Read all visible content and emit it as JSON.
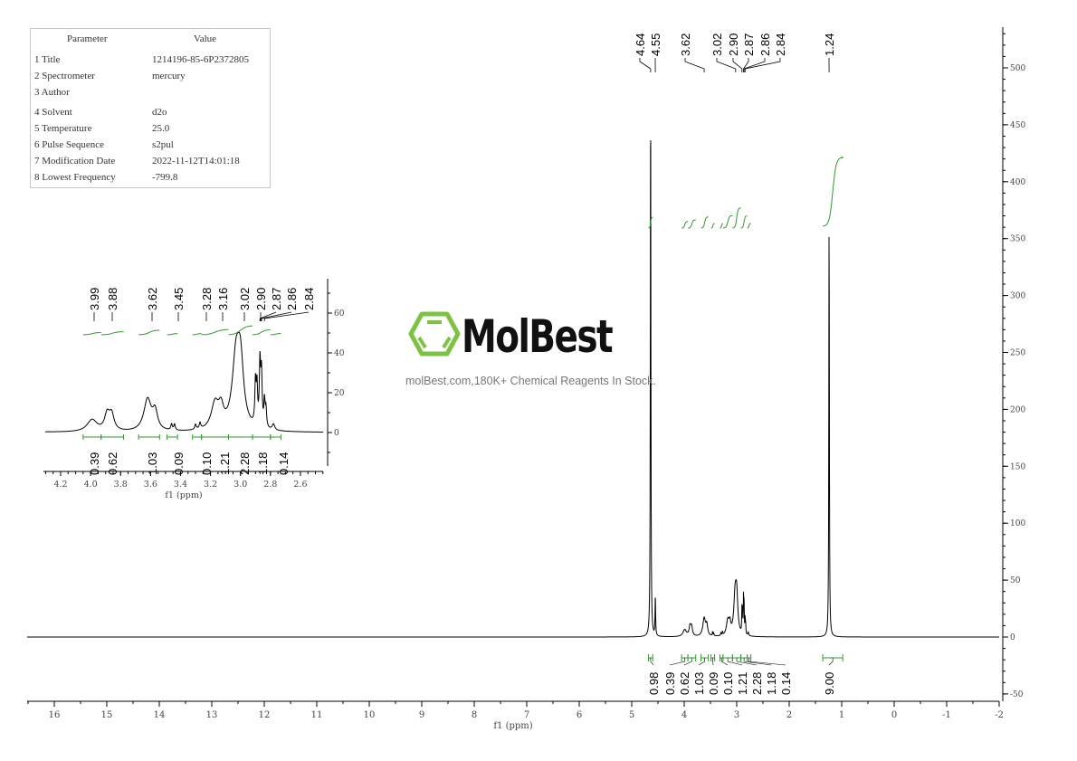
{
  "parameters": {
    "header": {
      "param": "Parameter",
      "value": "Value"
    },
    "rows": [
      {
        "label": "1 Title",
        "value": "1214196-85-6P2372805"
      },
      {
        "label": "2 Spectrometer",
        "value": "mercury"
      },
      {
        "label": "3 Author",
        "value": ""
      },
      {
        "label": "4 Solvent",
        "value": "d2o"
      },
      {
        "label": "5 Temperature",
        "value": "25.0"
      },
      {
        "label": "6 Pulse Sequence",
        "value": "s2pul"
      },
      {
        "label": "7 Modification Date",
        "value": "2022-11-12T14:01:18"
      },
      {
        "label": "8 Lowest Frequency",
        "value": "-799.8"
      }
    ]
  },
  "watermark": {
    "logo": "MolBest",
    "tagline": "molBest.com,180K+ Chemical Reagents In Stock.",
    "logo_color": "#7dc242"
  },
  "colors": {
    "spectrum": "#000000",
    "integral": "#2e9a2e",
    "axis": "#000000"
  },
  "chart_data": [
    {
      "type": "line",
      "title": "",
      "xlabel": "f1 (ppm)",
      "xlim": [
        16.5,
        -2
      ],
      "xticks": [
        "16",
        "15",
        "14",
        "13",
        "12",
        "11",
        "10",
        "9",
        "8",
        "7",
        "6",
        "5",
        "4",
        "3",
        "2",
        "1",
        "0",
        "-1",
        "-2"
      ],
      "ylim": [
        -55,
        530
      ],
      "yticks": [
        "-50",
        "0",
        "50",
        "100",
        "150",
        "200",
        "250",
        "300",
        "350",
        "400",
        "450",
        "500"
      ],
      "y_axis_side": "right",
      "grid": false,
      "peaks": [
        [
          4.64,
          488,
          0.006
        ],
        [
          4.55,
          35,
          0.006
        ],
        [
          3.99,
          6,
          0.04
        ],
        [
          3.89,
          8,
          0.02
        ],
        [
          3.86,
          8,
          0.02
        ],
        [
          3.62,
          16,
          0.03
        ],
        [
          3.57,
          9,
          0.02
        ],
        [
          3.46,
          3,
          0.006
        ],
        [
          3.44,
          3,
          0.006
        ],
        [
          3.3,
          2.5,
          0.006
        ],
        [
          3.27,
          3,
          0.006
        ],
        [
          3.17,
          13,
          0.03
        ],
        [
          3.13,
          9,
          0.02
        ],
        [
          3.03,
          34,
          0.03
        ],
        [
          3.0,
          30,
          0.025
        ],
        [
          2.9,
          21,
          0.005
        ],
        [
          2.89,
          19,
          0.005
        ],
        [
          2.87,
          31,
          0.005
        ],
        [
          2.86,
          26,
          0.005
        ],
        [
          2.84,
          13,
          0.005
        ],
        [
          2.83,
          9,
          0.005
        ],
        [
          2.78,
          3,
          0.01
        ],
        [
          1.24,
          370,
          0.006
        ]
      ],
      "peak_labels": [
        "4.64",
        "4.55",
        "3.62",
        "3.02",
        "2.90",
        "2.87",
        "2.86",
        "2.84",
        "1.24"
      ],
      "integrals": [
        {
          "range": [
            4.68,
            4.6
          ],
          "value": "0.98"
        },
        {
          "range": [
            4.05,
            3.93
          ],
          "value": "0.39"
        },
        {
          "range": [
            3.93,
            3.78
          ],
          "value": "0.62"
        },
        {
          "range": [
            3.68,
            3.54
          ],
          "value": "1.03"
        },
        {
          "range": [
            3.49,
            3.42
          ],
          "value": "0.09"
        },
        {
          "range": [
            3.32,
            3.26
          ],
          "value": "0.10"
        },
        {
          "range": [
            3.26,
            3.08
          ],
          "value": "1.21"
        },
        {
          "range": [
            3.08,
            2.92
          ],
          "value": "2.28"
        },
        {
          "range": [
            2.92,
            2.8
          ],
          "value": "1.18"
        },
        {
          "range": [
            2.8,
            2.73
          ],
          "value": "0.14"
        },
        {
          "range": [
            1.36,
            0.98
          ],
          "value": "9.00"
        }
      ]
    },
    {
      "type": "line",
      "title": "",
      "xlabel": "f1 (ppm)",
      "xlim": [
        4.3,
        2.45
      ],
      "xticks": [
        "4.2",
        "4.0",
        "3.8",
        "3.6",
        "3.4",
        "3.2",
        "3.0",
        "2.8",
        "2.6"
      ],
      "ylim": [
        -17,
        77
      ],
      "yticks": [
        "0",
        "20",
        "40",
        "60"
      ],
      "y_axis_side": "right",
      "grid": false,
      "peak_labels": [
        "3.99",
        "3.88",
        "3.62",
        "3.45",
        "3.28",
        "3.16",
        "3.02",
        "2.90",
        "2.87",
        "2.86",
        "2.84"
      ],
      "integrals": [
        {
          "range": [
            4.05,
            3.93
          ],
          "value": "0.39"
        },
        {
          "range": [
            3.93,
            3.78
          ],
          "value": "0.62"
        },
        {
          "range": [
            3.68,
            3.54
          ],
          "value": "1.03"
        },
        {
          "range": [
            3.49,
            3.42
          ],
          "value": "0.09"
        },
        {
          "range": [
            3.32,
            3.26
          ],
          "value": "0.10"
        },
        {
          "range": [
            3.26,
            3.08
          ],
          "value": "1.21"
        },
        {
          "range": [
            3.08,
            2.92
          ],
          "value": "2.28"
        },
        {
          "range": [
            2.92,
            2.8
          ],
          "value": "1.18"
        },
        {
          "range": [
            2.8,
            2.73
          ],
          "value": "0.14"
        }
      ]
    }
  ]
}
